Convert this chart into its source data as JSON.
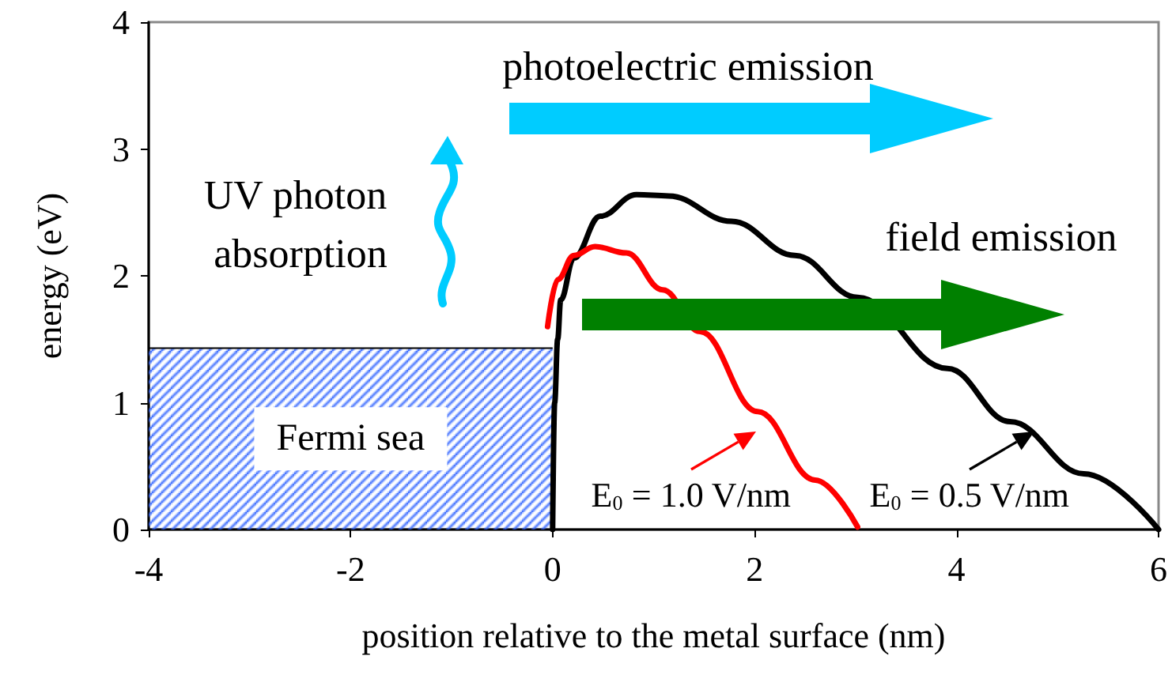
{
  "chart_data": {
    "type": "line",
    "xlabel": "position relative to the metal surface (nm)",
    "ylabel": "energy (eV)",
    "xlim": [
      -4,
      6
    ],
    "xticks": [
      -4,
      -2,
      0,
      2,
      4,
      6
    ],
    "ylim": [
      0,
      4
    ],
    "yticks": [
      0,
      1,
      2,
      3,
      4
    ],
    "grid": false,
    "legend": false,
    "marker": "none",
    "line_style": "solid",
    "series": [
      {
        "name": "Fermi sea",
        "type": "area",
        "color": "#3366ff",
        "x": [
          -4,
          0
        ],
        "values": [
          1.43,
          1.43
        ]
      },
      {
        "color": "#000000",
        "x": [
          0,
          0.02,
          0.05,
          0.08,
          0.21,
          0.47,
          0.83,
          1.15,
          1.77,
          2.4,
          3.02,
          3.91,
          4.53,
          5.26,
          6
        ],
        "values": [
          0,
          1.0,
          1.5,
          1.81,
          2.14,
          2.47,
          2.64,
          2.63,
          2.43,
          2.16,
          1.83,
          1.27,
          0.85,
          0.44,
          0
        ]
      },
      {
        "color": "#ff0000",
        "x": [
          -0.05,
          0.05,
          0.21,
          0.42,
          0.73,
          1.09,
          1.46,
          2.03,
          2.6,
          3.02
        ],
        "values": [
          1.6,
          1.97,
          2.16,
          2.23,
          2.18,
          1.89,
          1.56,
          0.93,
          0.39,
          0.02
        ]
      }
    ],
    "annotations": [
      "photoelectric emission",
      "UV photon absorption",
      "field emission",
      "E$_{0}$ = 1.0 V/nm",
      "E$_{0}$ = 0.5 V/nm"
    ]
  }
}
